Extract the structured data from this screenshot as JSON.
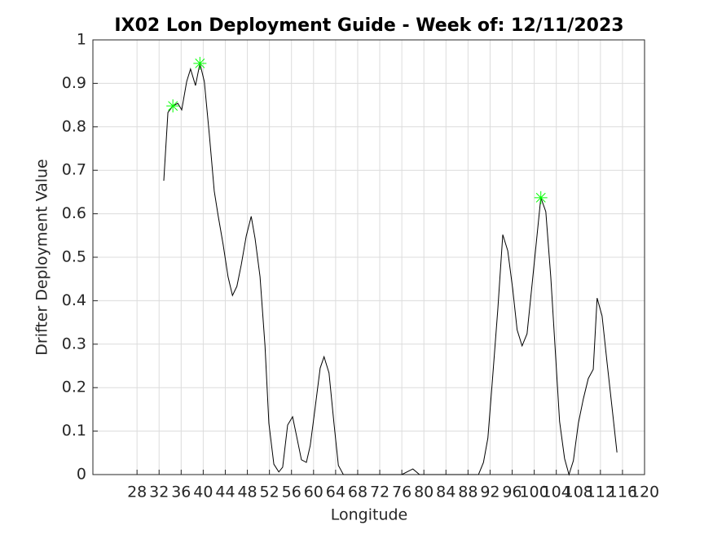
{
  "chart_data": {
    "type": "line",
    "title": "IX02 Lon Deployment Guide - Week of: 12/11/2023",
    "xlabel": "Longitude",
    "ylabel": "Drifter Deployment Value",
    "xlim": [
      20,
      120
    ],
    "xticks": [
      28,
      32,
      36,
      40,
      44,
      48,
      52,
      56,
      60,
      64,
      68,
      72,
      76,
      80,
      84,
      88,
      92,
      96,
      100,
      104,
      108,
      112,
      116,
      120
    ],
    "ylim": [
      0,
      1
    ],
    "yticks": [
      0,
      0.1,
      0.2,
      0.3,
      0.4,
      0.5,
      0.6,
      0.7,
      0.8,
      0.9,
      1
    ],
    "grid": true,
    "series": [
      {
        "color": "#000000",
        "x": [
          32.85,
          33.6,
          34.5,
          35.4,
          36.1,
          37,
          37.7,
          38.6,
          39.4,
          40.2,
          41.1,
          42,
          42.7,
          43.6,
          44.5,
          45.3,
          46.1,
          46.9,
          47.8,
          48.7,
          49.4,
          50.3,
          51.2,
          51.9,
          52.8,
          53.7,
          54.4,
          55.3,
          56.2,
          56.9,
          57.8,
          58.7,
          59.4,
          60.3,
          61.2,
          61.9,
          62.8,
          63.7,
          64.5,
          65.4,
          76,
          78,
          79.2,
          89.9,
          90.8,
          91.6,
          92.5,
          93.4,
          94.3,
          95.2,
          96.1,
          96.9,
          97.8,
          98.7,
          99.6,
          100.5,
          101.2,
          102.1,
          103,
          103.9,
          104.6,
          105.5,
          106.3,
          107.1,
          108,
          108.9,
          109.8,
          110.7,
          111.4,
          112.3,
          113.2,
          114.1,
          115
        ],
        "values": [
          0.676,
          0.833,
          0.848,
          0.854,
          0.839,
          0.904,
          0.933,
          0.895,
          0.946,
          0.904,
          0.783,
          0.652,
          0.596,
          0.53,
          0.455,
          0.412,
          0.433,
          0.483,
          0.549,
          0.594,
          0.543,
          0.455,
          0.296,
          0.118,
          0.024,
          0.006,
          0.017,
          0.114,
          0.133,
          0.09,
          0.034,
          0.028,
          0.067,
          0.155,
          0.245,
          0.271,
          0.234,
          0.118,
          0.021,
          0,
          0,
          0.013,
          0,
          0,
          0.028,
          0.084,
          0.23,
          0.38,
          0.552,
          0.515,
          0.427,
          0.333,
          0.296,
          0.324,
          0.436,
          0.549,
          0.637,
          0.605,
          0.455,
          0.268,
          0.122,
          0.037,
          0,
          0.032,
          0.118,
          0.174,
          0.221,
          0.242,
          0.406,
          0.365,
          0.258,
          0.155,
          0.051
        ]
      },
      {
        "color": "#00ff00",
        "marker": "star",
        "x": [
          34.5,
          39.4,
          101.2
        ],
        "values": [
          0.848,
          0.946,
          0.637
        ]
      }
    ]
  }
}
